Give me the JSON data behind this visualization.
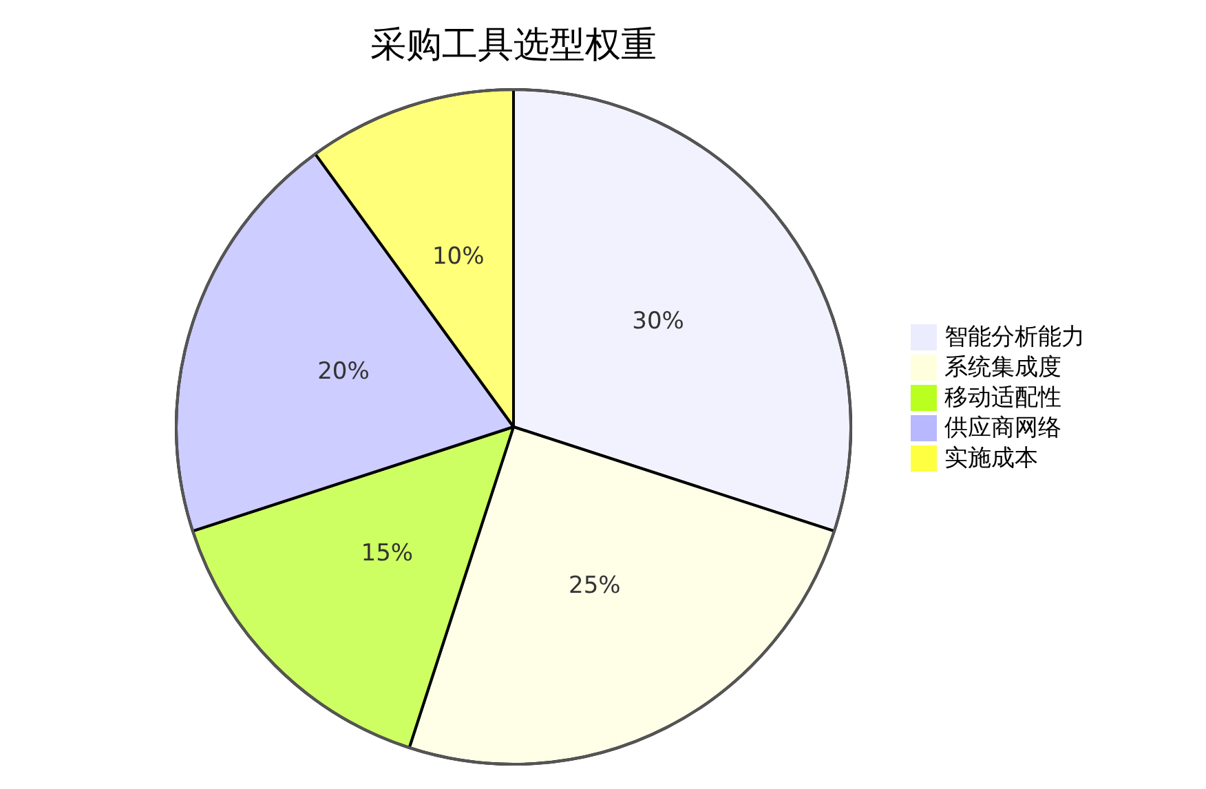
{
  "chart_data": {
    "type": "pie",
    "title": "采购工具选型权重",
    "categories": [
      "智能分析能力",
      "系统集成度",
      "移动适配性",
      "供应商网络",
      "实施成本"
    ],
    "values": [
      30,
      25,
      15,
      20,
      10
    ],
    "colors": [
      "#ececff",
      "#ffffde",
      "#b9ff1f",
      "#b8b8ff",
      "#ffff42"
    ],
    "value_labels": [
      "30%",
      "25%",
      "15%",
      "20%",
      "10%"
    ],
    "legend": "right"
  }
}
